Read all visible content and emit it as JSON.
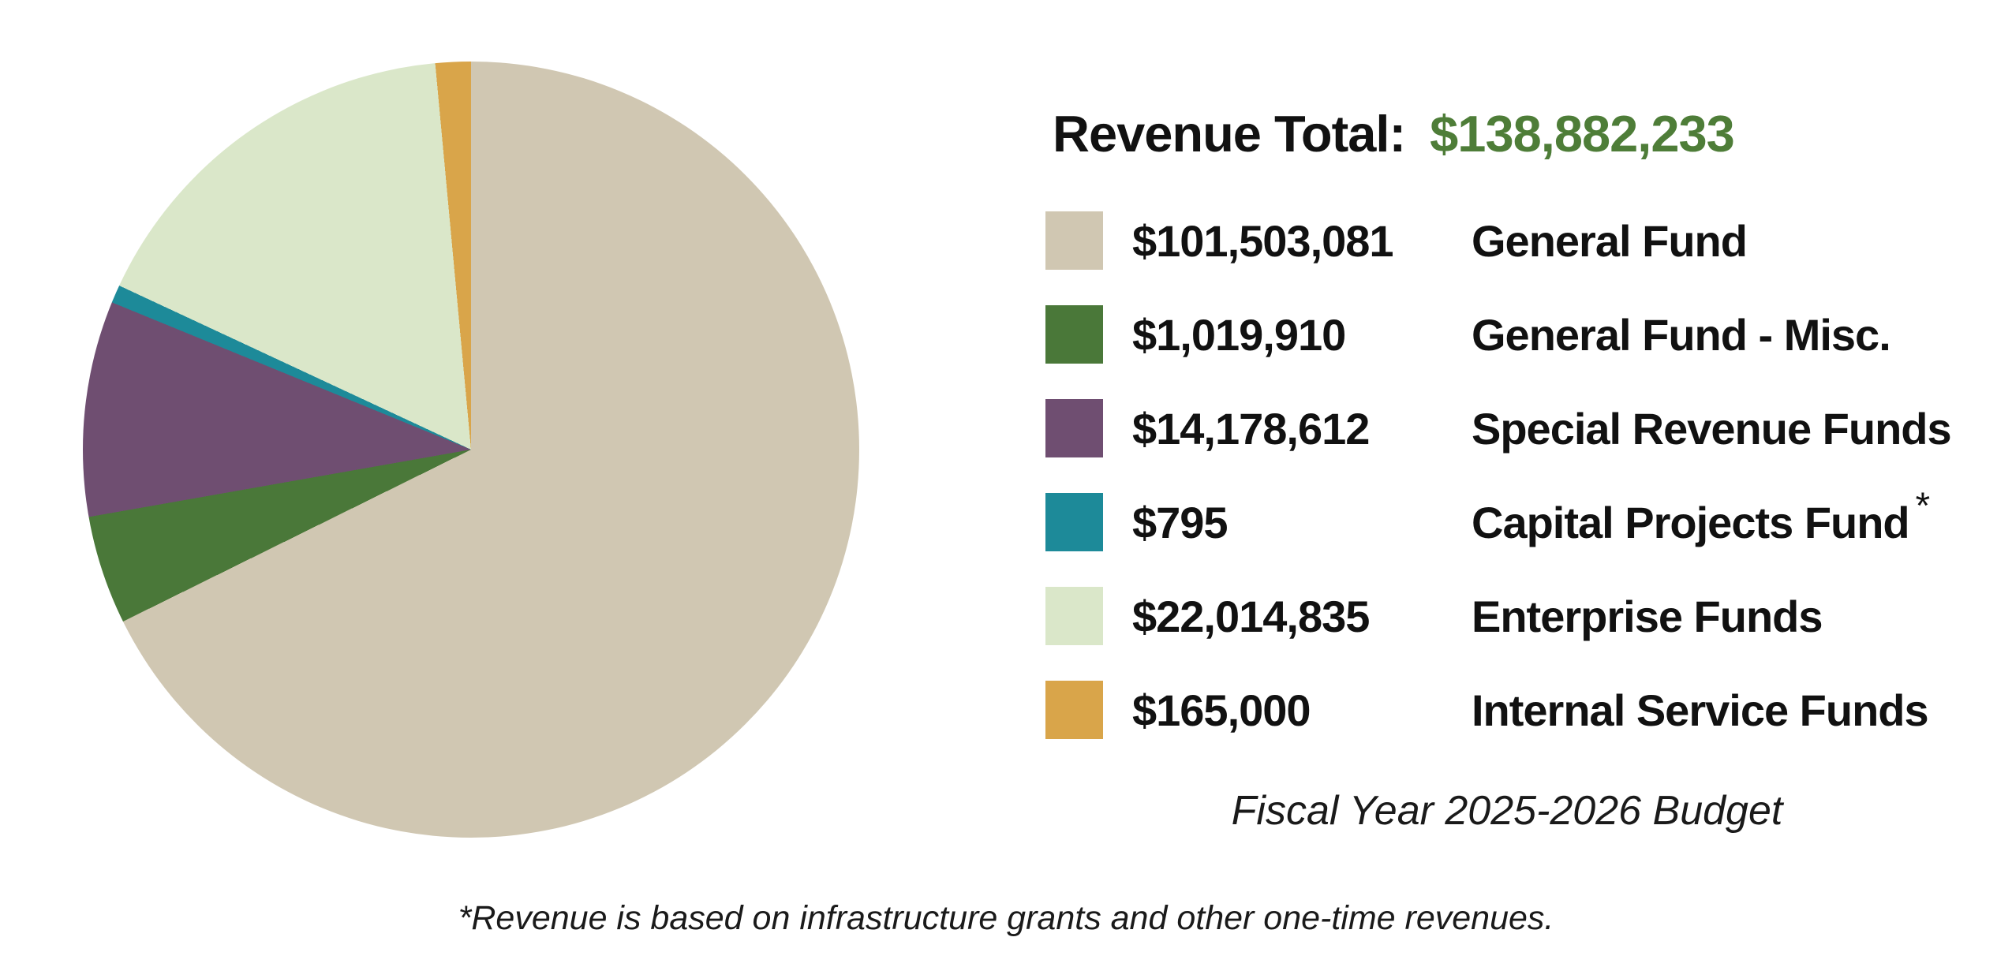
{
  "page": {
    "background": "#ffffff"
  },
  "header": {
    "title_label": "Revenue Total:",
    "title_value": "$138,882,233",
    "title_label_color": "#111111",
    "title_value_color": "#4e7d38"
  },
  "chart_data": {
    "type": "pie",
    "title": "Revenue Total: $138,882,233",
    "total": 138882233,
    "total_label": "$138,882,233",
    "legend_position": "right",
    "start_angle_deg": 0,
    "direction": "clockwise",
    "categories": [
      "General Fund",
      "General Fund - Misc.",
      "Special Revenue Funds",
      "Capital Projects Fund",
      "Enterprise Funds",
      "Internal Service Funds"
    ],
    "values": [
      101503081,
      1019910,
      14178612,
      795,
      22014835,
      165000
    ],
    "segments": [
      {
        "label": "General Fund",
        "value": 101503081,
        "value_label": "$101,503,081",
        "color": "#d0c7b2",
        "drawn_deg": 243.7
      },
      {
        "label": "General Fund - Misc.",
        "value": 1019910,
        "value_label": "$1,019,910",
        "color": "#4a7839",
        "drawn_deg": 16.3
      },
      {
        "label": "Special Revenue Funds",
        "value": 14178612,
        "value_label": "$14,178,612",
        "color": "#6f4e71",
        "drawn_deg": 32.3
      },
      {
        "label": "Capital Projects Fund",
        "value": 795,
        "value_label": "$795",
        "color": "#1d8a99",
        "drawn_deg": 2.7,
        "superscript": "*"
      },
      {
        "label": "Enterprise Funds",
        "value": 22014835,
        "value_label": "$22,014,835",
        "color": "#dae7c9",
        "drawn_deg": 59.7
      },
      {
        "label": "Internal Service Funds",
        "value": 165000,
        "value_label": "$165,000",
        "color": "#d9a54a",
        "drawn_deg": 5.3
      }
    ],
    "caption": "Fiscal Year 2025-2026 Budget",
    "footnote": "*Revenue is based on infrastructure grants and other one-time revenues."
  }
}
